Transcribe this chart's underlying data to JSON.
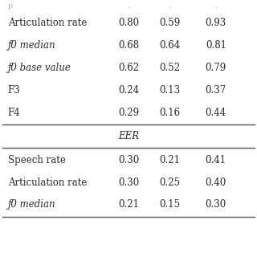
{
  "top_partial_rows": [
    [
      "Articulation rate",
      "0.80",
      "0.59",
      "0.93"
    ],
    [
      "ƒ0 median",
      "0.68",
      "0.64",
      "0.81"
    ],
    [
      "ƒ0 base value",
      "0.62",
      "0.52",
      "0.79"
    ],
    [
      "F3",
      "0.24",
      "0.13",
      "0.37"
    ],
    [
      "F4",
      "0.29",
      "0.16",
      "0.44"
    ]
  ],
  "eer_section_label": "EER",
  "eer_rows": [
    [
      "Speech rate",
      "0.30",
      "0.21",
      "0.41"
    ],
    [
      "Articulation rate",
      "0.30",
      "0.25",
      "0.40"
    ],
    [
      "ƒ0 median",
      "0.21",
      "0.15",
      "0.30"
    ]
  ],
  "italic_labels": [
    "ƒ0 median",
    "ƒ0 base value"
  ],
  "text_color": "#2a2a2a",
  "font_size": 8.5,
  "line_color": "#555555"
}
